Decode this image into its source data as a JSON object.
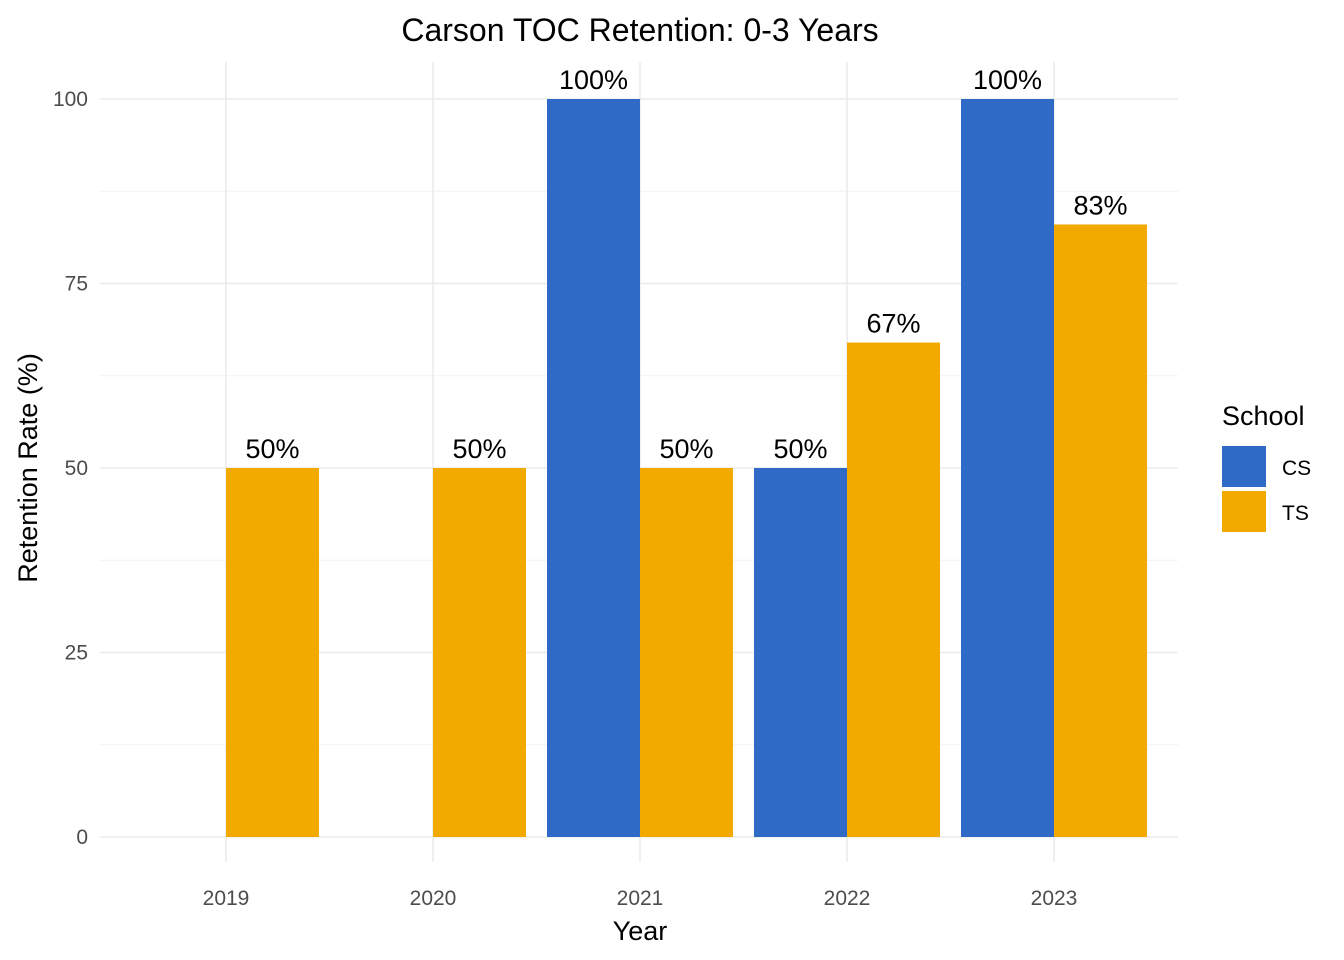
{
  "chart_data": {
    "type": "bar",
    "title": "Carson TOC Retention: 0-3 Years",
    "xlabel": "Year",
    "ylabel": "Retention Rate (%)",
    "categories": [
      "2019",
      "2020",
      "2021",
      "2022",
      "2023"
    ],
    "series": [
      {
        "name": "CS",
        "color": "#2f6ac6",
        "values": [
          null,
          null,
          100,
          50,
          100
        ],
        "labels": [
          "",
          "",
          "100%",
          "50%",
          "100%"
        ]
      },
      {
        "name": "TS",
        "color": "#f2a900",
        "values": [
          50,
          50,
          50,
          67,
          83
        ],
        "labels": [
          "50%",
          "50%",
          "50%",
          "67%",
          "83%"
        ]
      }
    ],
    "ylim": [
      0,
      100
    ],
    "yticks": [
      0,
      25,
      50,
      75,
      100
    ],
    "ytick_labels": [
      "0",
      "25",
      "50",
      "75",
      "100"
    ],
    "grid": true,
    "legend": {
      "title": "School",
      "position": "right"
    }
  }
}
